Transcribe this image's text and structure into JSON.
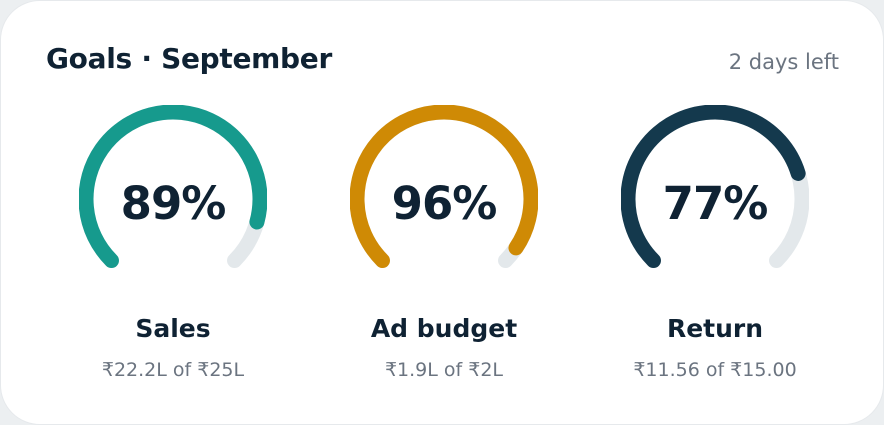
{
  "header": {
    "title": "Goals · September",
    "days_left": "2 days left"
  },
  "track_color": "#e3e8eb",
  "goals": [
    {
      "label": "Sales",
      "percent_text": "89%",
      "progress": 0.89,
      "detail": "₹22.2L of ₹25L",
      "color": "#169a8d"
    },
    {
      "label": "Ad budget",
      "percent_text": "96%",
      "progress": 0.96,
      "detail": "₹1.9L of ₹2L",
      "color": "#cf8a05"
    },
    {
      "label": "Return",
      "percent_text": "77%",
      "progress": 0.77,
      "detail": "₹11.56 of ₹15.00",
      "color": "#14394d"
    }
  ]
}
